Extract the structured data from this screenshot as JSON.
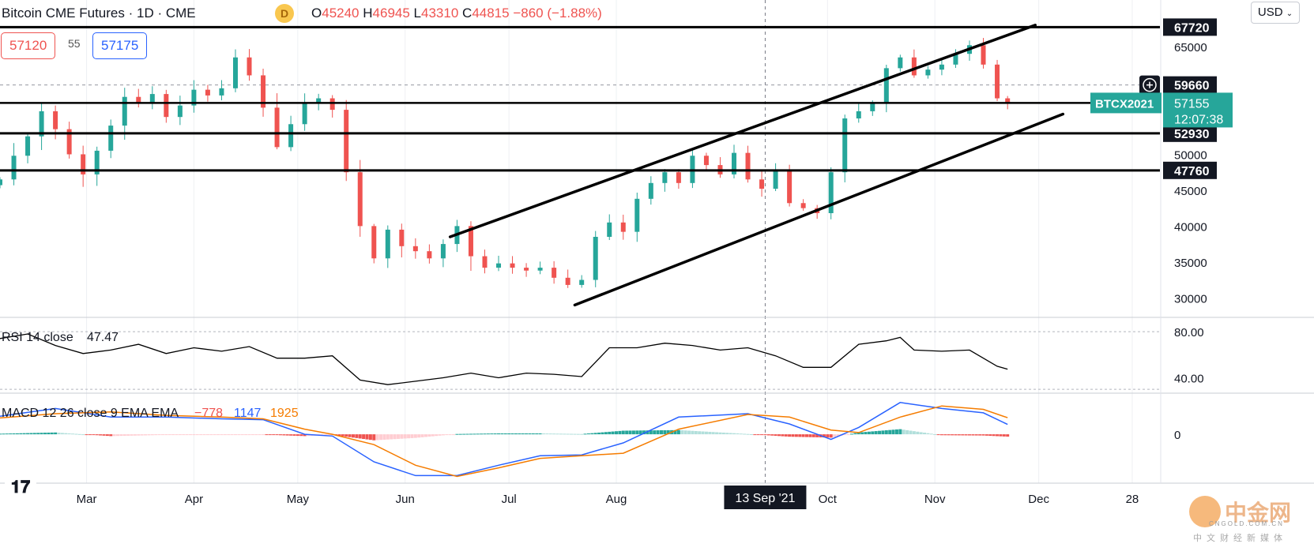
{
  "header": {
    "title": "Bitcoin CME Futures · 1D · CME",
    "badge": "D",
    "o_label": "O",
    "o_value": "45240",
    "h_label": "H",
    "h_value": "46945",
    "l_label": "L",
    "l_value": "43310",
    "c_label": "C",
    "c_value": "44815",
    "change": "−860 (−1.88%)",
    "bid": "57120",
    "spread": "55",
    "ask": "57175",
    "currency": "USD"
  },
  "colors": {
    "up": "#26a69a",
    "down": "#ef5350",
    "macd": "#2962ff",
    "signal": "#f57c00",
    "accent": "#26a69a"
  },
  "chart_data": [
    {
      "type": "candlestick",
      "name": "Bitcoin CME Futures",
      "x_labels": [
        "Mar",
        "Apr",
        "May",
        "Jun",
        "Jul",
        "Aug",
        "13 Sep '21",
        "Oct",
        "Nov",
        "Dec",
        "28"
      ],
      "x_label_dates": [
        "2021-03-01",
        "2021-04-01",
        "2021-05-01",
        "2021-06-01",
        "2021-07-01",
        "2021-08-01",
        "2021-09-13",
        "2021-10-01",
        "2021-11-01",
        "2021-12-01",
        "2021-12-28"
      ],
      "y_ticks": [
        30000,
        35000,
        40000,
        45000,
        50000,
        55000,
        60000,
        65000
      ],
      "y_tick_labels": [
        "30000",
        "35000",
        "40000",
        "45000",
        "50000",
        "55000",
        "60000",
        "65000"
      ],
      "ylim": [
        27500,
        71500
      ],
      "date_range": [
        "2021-02-04",
        "2022-01-05"
      ],
      "closes": [
        [
          "2021-02-04",
          46500
        ],
        [
          "2021-02-08",
          49800
        ],
        [
          "2021-02-12",
          52500
        ],
        [
          "2021-02-16",
          56000
        ],
        [
          "2021-02-20",
          53500
        ],
        [
          "2021-02-24",
          50000
        ],
        [
          "2021-02-28",
          47200
        ],
        [
          "2021-03-04",
          50500
        ],
        [
          "2021-03-08",
          54000
        ],
        [
          "2021-03-12",
          58000
        ],
        [
          "2021-03-16",
          57200
        ],
        [
          "2021-03-20",
          58400
        ],
        [
          "2021-03-24",
          55200
        ],
        [
          "2021-03-28",
          56800
        ],
        [
          "2021-04-01",
          59000
        ],
        [
          "2021-04-05",
          58200
        ],
        [
          "2021-04-09",
          59200
        ],
        [
          "2021-04-13",
          63500
        ],
        [
          "2021-04-17",
          61000
        ],
        [
          "2021-04-21",
          56500
        ],
        [
          "2021-04-25",
          51000
        ],
        [
          "2021-04-29",
          54200
        ],
        [
          "2021-05-03",
          57200
        ],
        [
          "2021-05-07",
          57800
        ],
        [
          "2021-05-11",
          56200
        ],
        [
          "2021-05-15",
          47500
        ],
        [
          "2021-05-19",
          40000
        ],
        [
          "2021-05-23",
          35500
        ],
        [
          "2021-05-27",
          39500
        ],
        [
          "2021-05-31",
          37200
        ],
        [
          "2021-06-04",
          36500
        ],
        [
          "2021-06-08",
          35500
        ],
        [
          "2021-06-12",
          37500
        ],
        [
          "2021-06-16",
          40000
        ],
        [
          "2021-06-20",
          35800
        ],
        [
          "2021-06-24",
          34200
        ],
        [
          "2021-06-28",
          34800
        ],
        [
          "2021-07-02",
          34200
        ],
        [
          "2021-07-06",
          33800
        ],
        [
          "2021-07-10",
          34200
        ],
        [
          "2021-07-14",
          32800
        ],
        [
          "2021-07-18",
          31800
        ],
        [
          "2021-07-22",
          32500
        ],
        [
          "2021-07-26",
          38500
        ],
        [
          "2021-07-30",
          40500
        ],
        [
          "2021-08-03",
          39200
        ],
        [
          "2021-08-07",
          43800
        ],
        [
          "2021-08-11",
          46000
        ],
        [
          "2021-08-15",
          47500
        ],
        [
          "2021-08-19",
          46000
        ],
        [
          "2021-08-23",
          49800
        ],
        [
          "2021-08-27",
          48500
        ],
        [
          "2021-08-31",
          47200
        ],
        [
          "2021-09-04",
          50200
        ],
        [
          "2021-09-08",
          46500
        ],
        [
          "2021-09-12",
          45200
        ],
        [
          "2021-09-16",
          47800
        ],
        [
          "2021-09-20",
          43200
        ],
        [
          "2021-09-24",
          42500
        ],
        [
          "2021-09-28",
          41800
        ],
        [
          "2021-10-02",
          47500
        ],
        [
          "2021-10-06",
          55000
        ],
        [
          "2021-10-10",
          56000
        ],
        [
          "2021-10-14",
          57200
        ],
        [
          "2021-10-18",
          62000
        ],
        [
          "2021-10-22",
          63500
        ],
        [
          "2021-10-26",
          61000
        ],
        [
          "2021-10-30",
          61800
        ],
        [
          "2021-11-03",
          62500
        ],
        [
          "2021-11-07",
          64000
        ],
        [
          "2021-11-11",
          65200
        ],
        [
          "2021-11-15",
          62500
        ],
        [
          "2021-11-19",
          57800
        ],
        [
          "2021-11-22",
          57155
        ]
      ],
      "trendlines": [
        {
          "from": [
            "2021-06-14",
            38500
          ],
          "to": [
            "2021-11-30",
            68000
          ]
        },
        {
          "from": [
            "2021-07-20",
            29000
          ],
          "to": [
            "2021-12-08",
            55600
          ]
        }
      ],
      "levels": [
        "67720",
        "59660",
        "57155",
        "52930",
        "47760"
      ],
      "level_values": [
        67720,
        59660,
        57155,
        52930,
        47760
      ],
      "symbol_tag": "BTCX2021",
      "countdown": "12:07:38"
    },
    {
      "type": "line",
      "name": "RSI 14 close",
      "label": "RSI 14 close",
      "last_value": "47.47",
      "y_ticks": [
        "80.00",
        "40.00"
      ],
      "y_tick_values": [
        80,
        40
      ],
      "ylim": [
        28,
        91
      ],
      "values": [
        [
          "2021-02-04",
          74
        ],
        [
          "2021-02-12",
          78
        ],
        [
          "2021-02-20",
          68
        ],
        [
          "2021-02-28",
          61
        ],
        [
          "2021-03-08",
          64
        ],
        [
          "2021-03-16",
          69
        ],
        [
          "2021-03-24",
          61
        ],
        [
          "2021-04-01",
          66
        ],
        [
          "2021-04-09",
          63
        ],
        [
          "2021-04-17",
          67
        ],
        [
          "2021-04-25",
          57
        ],
        [
          "2021-05-03",
          57
        ],
        [
          "2021-05-11",
          59
        ],
        [
          "2021-05-19",
          38
        ],
        [
          "2021-05-27",
          34
        ],
        [
          "2021-06-04",
          37
        ],
        [
          "2021-06-12",
          40
        ],
        [
          "2021-06-20",
          44
        ],
        [
          "2021-06-28",
          40
        ],
        [
          "2021-07-06",
          44
        ],
        [
          "2021-07-14",
          43
        ],
        [
          "2021-07-22",
          41
        ],
        [
          "2021-07-30",
          66
        ],
        [
          "2021-08-07",
          66
        ],
        [
          "2021-08-15",
          70
        ],
        [
          "2021-08-23",
          68
        ],
        [
          "2021-08-31",
          64
        ],
        [
          "2021-09-08",
          66
        ],
        [
          "2021-09-16",
          59
        ],
        [
          "2021-09-24",
          49
        ],
        [
          "2021-10-02",
          49
        ],
        [
          "2021-10-10",
          69
        ],
        [
          "2021-10-18",
          72
        ],
        [
          "2021-10-22",
          75
        ],
        [
          "2021-10-26",
          64
        ],
        [
          "2021-11-03",
          63
        ],
        [
          "2021-11-11",
          64
        ],
        [
          "2021-11-19",
          50
        ],
        [
          "2021-11-22",
          47.47
        ]
      ]
    },
    {
      "type": "macd",
      "name": "MACD 12 26 close 9 EMA EMA",
      "label": "MACD 12 26 close 9 EMA EMA",
      "histogram_value": "−778",
      "macd_value": "1147",
      "signal_value": "1925",
      "y_ticks": [
        "0"
      ],
      "y_tick_values": [
        0
      ],
      "ylim": [
        -5500,
        4600
      ],
      "macd": [
        [
          "2021-02-04",
          2100
        ],
        [
          "2021-02-20",
          3000
        ],
        [
          "2021-03-08",
          2000
        ],
        [
          "2021-03-24",
          2000
        ],
        [
          "2021-04-09",
          1800
        ],
        [
          "2021-04-21",
          1700
        ],
        [
          "2021-05-03",
          0
        ],
        [
          "2021-05-11",
          -200
        ],
        [
          "2021-05-23",
          -3200
        ],
        [
          "2021-06-04",
          -4800
        ],
        [
          "2021-06-16",
          -4800
        ],
        [
          "2021-06-28",
          -3600
        ],
        [
          "2021-07-10",
          -2500
        ],
        [
          "2021-07-22",
          -2400
        ],
        [
          "2021-08-03",
          -1000
        ],
        [
          "2021-08-19",
          2000
        ],
        [
          "2021-09-08",
          2400
        ],
        [
          "2021-09-20",
          1200
        ],
        [
          "2021-10-02",
          -600
        ],
        [
          "2021-10-10",
          800
        ],
        [
          "2021-10-22",
          3700
        ],
        [
          "2021-11-03",
          3000
        ],
        [
          "2021-11-15",
          2500
        ],
        [
          "2021-11-22",
          1147
        ]
      ],
      "signal": [
        [
          "2021-02-04",
          1900
        ],
        [
          "2021-02-20",
          2400
        ],
        [
          "2021-03-08",
          2600
        ],
        [
          "2021-03-24",
          2200
        ],
        [
          "2021-04-09",
          2000
        ],
        [
          "2021-04-21",
          1800
        ],
        [
          "2021-05-03",
          600
        ],
        [
          "2021-05-11",
          0
        ],
        [
          "2021-05-23",
          -1200
        ],
        [
          "2021-06-04",
          -3600
        ],
        [
          "2021-06-16",
          -4900
        ],
        [
          "2021-06-28",
          -3900
        ],
        [
          "2021-07-10",
          -2800
        ],
        [
          "2021-07-22",
          -2500
        ],
        [
          "2021-08-03",
          -2200
        ],
        [
          "2021-08-19",
          600
        ],
        [
          "2021-09-08",
          2300
        ],
        [
          "2021-09-20",
          2000
        ],
        [
          "2021-10-02",
          500
        ],
        [
          "2021-10-10",
          200
        ],
        [
          "2021-10-22",
          2000
        ],
        [
          "2021-11-03",
          3300
        ],
        [
          "2021-11-15",
          2900
        ],
        [
          "2021-11-22",
          1925
        ]
      ]
    }
  ],
  "watermark": {
    "name": "中金网",
    "site": "CNGOLD.COM.CN",
    "slogan": "中文财经新媒体"
  }
}
